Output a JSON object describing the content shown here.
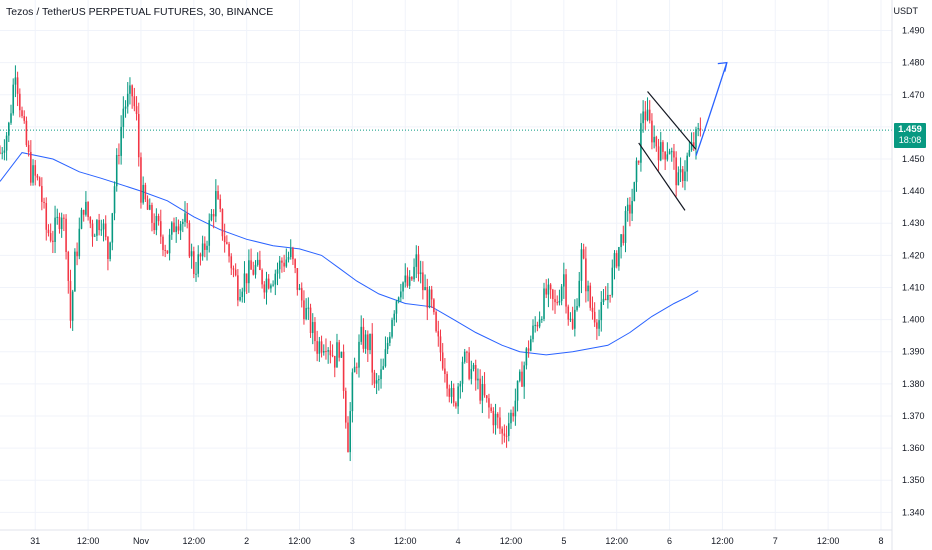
{
  "header": {
    "title": "Tezos / TetherUS PERPETUAL FUTURES, 30, BINANCE"
  },
  "axis": {
    "unit_label": "USDT"
  },
  "last_price": {
    "value_label": "1.459",
    "countdown": "18:08",
    "color": "#089981"
  },
  "colors": {
    "up": "#089981",
    "down": "#f23645",
    "ma_line": "#2962ff",
    "annotation": "#131722",
    "price_line": "#089981"
  },
  "chart_data": {
    "type": "candlestick",
    "y_ticks": [
      "1.490",
      "1.480",
      "1.470",
      "1.460",
      "1.450",
      "1.440",
      "1.430",
      "1.420",
      "1.410",
      "1.400",
      "1.390",
      "1.380",
      "1.370",
      "1.360",
      "1.350",
      "1.340"
    ],
    "ylim": [
      1.3345,
      1.4995
    ],
    "x_ticks": [
      "31",
      "12:00",
      "Nov",
      "12:00",
      "2",
      "12:00",
      "3",
      "12:00",
      "4",
      "12:00",
      "5",
      "12:00",
      "6",
      "12:00",
      "7",
      "12:00",
      "8"
    ],
    "x_tick_bars": [
      0,
      24,
      48,
      72,
      96,
      120,
      144,
      168,
      192,
      216,
      240,
      264,
      288,
      312,
      336,
      360,
      384
    ],
    "xlim_bars": [
      -16,
      389
    ],
    "last_close": 1.459,
    "path_anchors": [
      [
        -16,
        1.452
      ],
      [
        -12,
        1.46
      ],
      [
        -9,
        1.479
      ],
      [
        -6,
        1.462
      ],
      [
        -2,
        1.446
      ],
      [
        2,
        1.442
      ],
      [
        5,
        1.428
      ],
      [
        8,
        1.426
      ],
      [
        12,
        1.434
      ],
      [
        14,
        1.425
      ],
      [
        16,
        1.4
      ],
      [
        18,
        1.418
      ],
      [
        22,
        1.436
      ],
      [
        26,
        1.428
      ],
      [
        30,
        1.432
      ],
      [
        33,
        1.42
      ],
      [
        36,
        1.442
      ],
      [
        40,
        1.466
      ],
      [
        44,
        1.47
      ],
      [
        46,
        1.462
      ],
      [
        48,
        1.44
      ],
      [
        52,
        1.432
      ],
      [
        56,
        1.428
      ],
      [
        60,
        1.422
      ],
      [
        64,
        1.432
      ],
      [
        68,
        1.43
      ],
      [
        72,
        1.416
      ],
      [
        76,
        1.42
      ],
      [
        80,
        1.432
      ],
      [
        82,
        1.438
      ],
      [
        85,
        1.428
      ],
      [
        88,
        1.42
      ],
      [
        92,
        1.41
      ],
      [
        96,
        1.414
      ],
      [
        100,
        1.416
      ],
      [
        104,
        1.412
      ],
      [
        108,
        1.414
      ],
      [
        112,
        1.418
      ],
      [
        116,
        1.42
      ],
      [
        120,
        1.408
      ],
      [
        124,
        1.4
      ],
      [
        128,
        1.392
      ],
      [
        132,
        1.394
      ],
      [
        136,
        1.388
      ],
      [
        138,
        1.392
      ],
      [
        140,
        1.38
      ],
      [
        142,
        1.362
      ],
      [
        144,
        1.38
      ],
      [
        146,
        1.388
      ],
      [
        148,
        1.394
      ],
      [
        152,
        1.392
      ],
      [
        154,
        1.378
      ],
      [
        158,
        1.384
      ],
      [
        162,
        1.402
      ],
      [
        166,
        1.412
      ],
      [
        170,
        1.41
      ],
      [
        173,
        1.418
      ],
      [
        176,
        1.41
      ],
      [
        180,
        1.404
      ],
      [
        182,
        1.394
      ],
      [
        186,
        1.386
      ],
      [
        190,
        1.372
      ],
      [
        194,
        1.388
      ],
      [
        198,
        1.384
      ],
      [
        202,
        1.378
      ],
      [
        206,
        1.372
      ],
      [
        210,
        1.368
      ],
      [
        212,
        1.364
      ],
      [
        216,
        1.37
      ],
      [
        220,
        1.38
      ],
      [
        224,
        1.392
      ],
      [
        228,
        1.4
      ],
      [
        232,
        1.408
      ],
      [
        236,
        1.404
      ],
      [
        240,
        1.414
      ],
      [
        242,
        1.402
      ],
      [
        244,
        1.396
      ],
      [
        246,
        1.408
      ],
      [
        248,
        1.42
      ],
      [
        252,
        1.404
      ],
      [
        256,
        1.4
      ],
      [
        260,
        1.408
      ],
      [
        264,
        1.42
      ],
      [
        268,
        1.43
      ],
      [
        272,
        1.44
      ],
      [
        274,
        1.452
      ],
      [
        276,
        1.466
      ],
      [
        278,
        1.462
      ],
      [
        280,
        1.458
      ],
      [
        284,
        1.452
      ],
      [
        288,
        1.454
      ],
      [
        292,
        1.442
      ],
      [
        296,
        1.45
      ],
      [
        300,
        1.456
      ],
      [
        302,
        1.459
      ]
    ],
    "ma_anchors": [
      [
        -16,
        1.443
      ],
      [
        -6,
        1.452
      ],
      [
        8,
        1.45
      ],
      [
        20,
        1.446
      ],
      [
        30,
        1.444
      ],
      [
        48,
        1.44
      ],
      [
        60,
        1.437
      ],
      [
        72,
        1.432
      ],
      [
        84,
        1.428
      ],
      [
        96,
        1.425
      ],
      [
        108,
        1.423
      ],
      [
        120,
        1.422
      ],
      [
        130,
        1.42
      ],
      [
        138,
        1.416
      ],
      [
        146,
        1.412
      ],
      [
        156,
        1.408
      ],
      [
        168,
        1.405
      ],
      [
        180,
        1.404
      ],
      [
        190,
        1.4
      ],
      [
        200,
        1.396
      ],
      [
        212,
        1.392
      ],
      [
        220,
        1.39
      ],
      [
        232,
        1.389
      ],
      [
        244,
        1.39
      ],
      [
        252,
        1.391
      ],
      [
        260,
        1.392
      ],
      [
        270,
        1.396
      ],
      [
        280,
        1.401
      ],
      [
        290,
        1.405
      ],
      [
        296,
        1.407
      ],
      [
        301,
        1.409
      ]
    ]
  },
  "annotations": {
    "flag_upper": [
      [
        278,
        1.471
      ],
      [
        300,
        1.453
      ]
    ],
    "flag_lower": [
      [
        274,
        1.455
      ],
      [
        295,
        1.434
      ]
    ],
    "arrow": [
      [
        300,
        1.451
      ],
      [
        306,
        1.463
      ],
      [
        314,
        1.48
      ]
    ]
  }
}
